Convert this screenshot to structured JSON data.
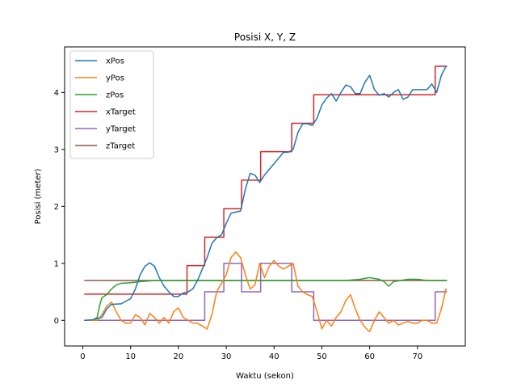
{
  "chart_data": {
    "type": "line",
    "title": "Posisi X, Y, Z",
    "xlabel": "Waktu (sekon)",
    "ylabel": "Posisi (meter)",
    "xlim": [
      -3.8,
      80
    ],
    "ylim": [
      -0.45,
      4.8
    ],
    "xticks": [
      0,
      10,
      20,
      30,
      40,
      50,
      60,
      70
    ],
    "yticks": [
      0,
      1,
      2,
      3,
      4
    ],
    "legend_position": "top-left",
    "grid": false,
    "series": [
      {
        "name": "xPos",
        "color": "#1f77b4",
        "x": [
          0.3,
          2,
          4,
          5,
          6,
          8,
          10,
          11,
          12,
          13,
          14,
          15,
          16,
          17,
          18,
          19,
          20,
          21,
          22,
          23,
          24,
          25,
          26,
          27,
          28,
          29,
          30,
          31,
          32,
          33,
          34,
          35,
          36,
          37,
          38,
          39,
          40,
          41,
          42,
          43,
          44,
          45,
          46,
          47,
          48,
          49,
          50,
          51,
          52,
          53,
          54,
          55,
          56,
          57,
          58,
          59,
          60,
          61,
          62,
          63,
          64,
          65,
          66,
          67,
          68,
          69,
          70,
          71,
          72,
          73,
          74,
          75,
          76
        ],
        "y": [
          0.0,
          0.01,
          0.05,
          0.2,
          0.28,
          0.29,
          0.38,
          0.55,
          0.8,
          0.95,
          1.01,
          0.95,
          0.75,
          0.6,
          0.5,
          0.42,
          0.42,
          0.48,
          0.5,
          0.55,
          0.7,
          0.9,
          1.1,
          1.35,
          1.45,
          1.5,
          1.7,
          1.88,
          1.9,
          1.92,
          2.3,
          2.58,
          2.55,
          2.42,
          2.55,
          2.65,
          2.75,
          2.85,
          2.95,
          2.95,
          3.0,
          3.3,
          3.45,
          3.45,
          3.42,
          3.55,
          3.78,
          3.9,
          3.98,
          3.85,
          4.0,
          4.13,
          4.1,
          3.98,
          3.98,
          4.18,
          4.3,
          4.05,
          3.95,
          3.98,
          3.92,
          4.0,
          4.05,
          3.88,
          3.92,
          4.05,
          4.05,
          4.05,
          4.05,
          4.15,
          4.0,
          4.3,
          4.47
        ]
      },
      {
        "name": "yPos",
        "color": "#ff7f0e",
        "x": [
          0.3,
          2,
          3,
          4,
          5,
          6,
          7,
          8,
          9,
          10,
          11,
          12,
          13,
          14,
          15,
          16,
          17,
          18,
          19,
          20,
          21,
          22,
          23,
          24,
          25,
          26,
          27,
          28,
          29,
          30,
          31,
          32,
          33,
          34,
          35,
          36,
          37,
          38,
          39,
          40,
          41,
          42,
          43,
          44,
          45,
          46,
          47,
          48,
          49,
          50,
          51,
          52,
          53,
          54,
          55,
          56,
          57,
          58,
          59,
          60,
          61,
          62,
          63,
          64,
          65,
          66,
          67,
          68,
          69,
          70,
          71,
          72,
          73,
          74,
          75,
          76
        ],
        "y": [
          0.0,
          0.0,
          0.0,
          0.1,
          0.25,
          0.32,
          0.15,
          0.0,
          -0.05,
          -0.05,
          0.1,
          0.05,
          -0.08,
          0.12,
          0.05,
          -0.05,
          0.05,
          -0.05,
          0.15,
          0.22,
          0.05,
          0.0,
          -0.05,
          -0.05,
          -0.1,
          -0.15,
          0.1,
          0.5,
          0.65,
          0.8,
          1.1,
          1.2,
          1.1,
          0.8,
          0.55,
          0.62,
          1.0,
          0.75,
          0.95,
          1.05,
          0.95,
          0.9,
          0.95,
          1.0,
          0.6,
          0.5,
          0.45,
          0.42,
          0.15,
          -0.15,
          0.0,
          -0.1,
          0.05,
          0.15,
          0.35,
          0.45,
          0.2,
          0.0,
          -0.12,
          -0.2,
          0.0,
          0.15,
          0.05,
          -0.05,
          0.0,
          -0.08,
          -0.05,
          -0.02,
          -0.05,
          -0.05,
          0.0,
          0.0,
          -0.05,
          -0.05,
          0.2,
          0.56
        ]
      },
      {
        "name": "zPos",
        "color": "#2ca02c",
        "x": [
          0.3,
          2,
          3,
          3.5,
          4,
          5,
          6,
          7,
          8,
          10,
          12,
          15,
          20,
          25,
          30,
          35,
          40,
          45,
          50,
          55,
          58,
          60,
          62,
          63,
          64,
          65,
          68,
          70,
          72,
          74,
          76
        ],
        "y": [
          0.0,
          0.0,
          0.05,
          0.25,
          0.4,
          0.45,
          0.55,
          0.62,
          0.65,
          0.66,
          0.68,
          0.7,
          0.7,
          0.7,
          0.7,
          0.7,
          0.7,
          0.7,
          0.7,
          0.7,
          0.72,
          0.75,
          0.72,
          0.68,
          0.6,
          0.68,
          0.72,
          0.72,
          0.7,
          0.7,
          0.7
        ]
      },
      {
        "name": "xTarget",
        "color": "#d62728",
        "x": [
          0.3,
          21.8,
          21.8,
          25.5,
          25.5,
          29.5,
          29.5,
          33.2,
          33.2,
          37.2,
          37.2,
          43.7,
          43.7,
          48.3,
          48.3,
          73.7,
          73.7,
          76.2
        ],
        "y": [
          0.46,
          0.46,
          0.96,
          0.96,
          1.46,
          1.46,
          1.96,
          1.96,
          2.46,
          2.46,
          2.96,
          2.96,
          3.46,
          3.46,
          3.96,
          3.96,
          4.46,
          4.46
        ]
      },
      {
        "name": "yTarget",
        "color": "#9467bd",
        "x": [
          0.3,
          25.5,
          25.5,
          29.5,
          29.5,
          33.2,
          33.2,
          37.2,
          37.2,
          43.7,
          43.7,
          48.3,
          48.3,
          73.7,
          73.7,
          76.2
        ],
        "y": [
          0.0,
          0.0,
          0.5,
          0.5,
          1.0,
          1.0,
          0.5,
          0.5,
          1.0,
          1.0,
          0.5,
          0.5,
          0.0,
          0.0,
          0.5,
          0.5
        ]
      },
      {
        "name": "zTarget",
        "color": "#8c564b",
        "x": [
          0.3,
          76.2
        ],
        "y": [
          0.7,
          0.7
        ]
      }
    ]
  }
}
